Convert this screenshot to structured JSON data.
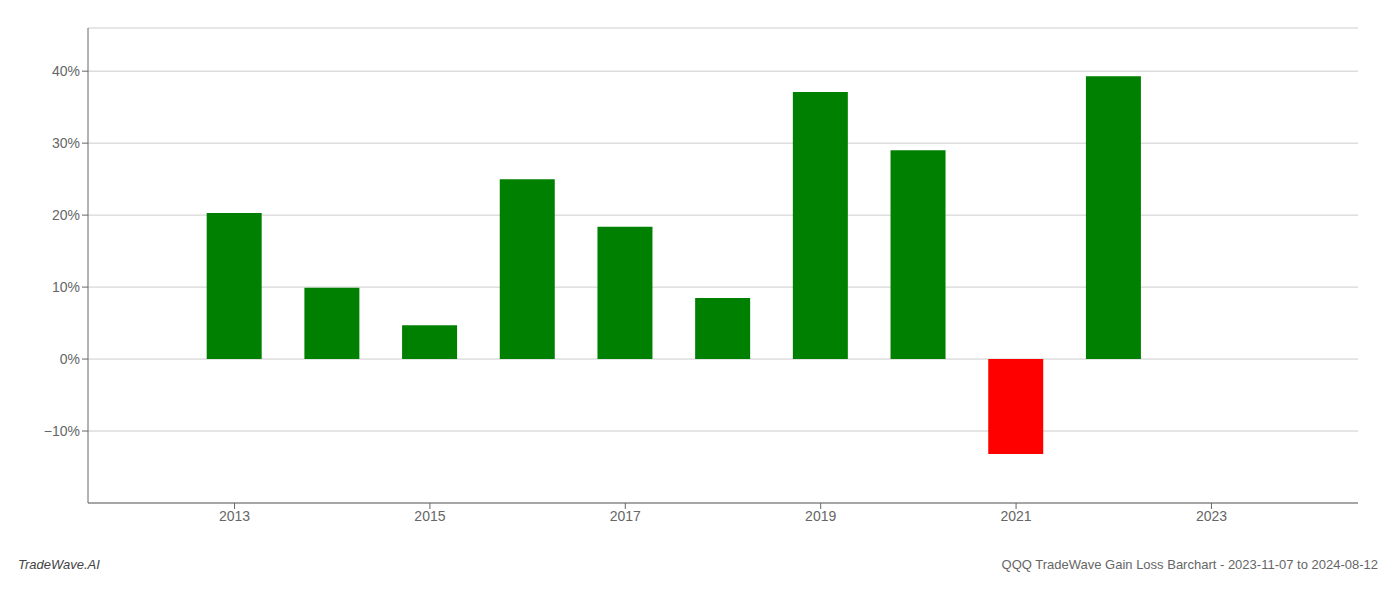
{
  "chart_data": {
    "type": "bar",
    "x": [
      2013,
      2014,
      2015,
      2016,
      2017,
      2018,
      2019,
      2020,
      2021,
      2022
    ],
    "values": [
      20.3,
      9.9,
      4.7,
      25.0,
      18.4,
      8.5,
      37.1,
      29.0,
      -13.2,
      39.3
    ],
    "colors": [
      "#008000",
      "#008000",
      "#008000",
      "#008000",
      "#008000",
      "#008000",
      "#008000",
      "#008000",
      "#ff0000",
      "#008000"
    ],
    "xlim": [
      2011.5,
      2024.5
    ],
    "xticks": [
      2013,
      2015,
      2017,
      2019,
      2021,
      2023
    ],
    "ylim": [
      -20,
      46
    ],
    "yticks": [
      {
        "value": -10,
        "label": "−10%"
      },
      {
        "value": 0,
        "label": "0%"
      },
      {
        "value": 10,
        "label": "10%"
      },
      {
        "value": 20,
        "label": "20%"
      },
      {
        "value": 30,
        "label": "30%"
      },
      {
        "value": 40,
        "label": "40%"
      }
    ],
    "grid": true,
    "annotations": [
      "TradeWave.AI",
      "QQQ TradeWave Gain Loss Barchart - 2023-11-07 to 2024-08-12"
    ]
  }
}
